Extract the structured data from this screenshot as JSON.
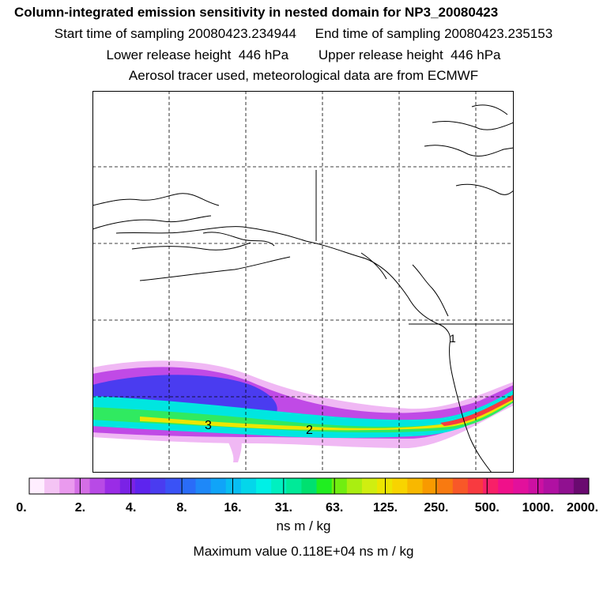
{
  "header": {
    "title": "Column-integrated emission sensitivity in nested domain for NP3_20080423",
    "sampling_line": "Start time of sampling 20080423.234944     End time of sampling 20080423.235153",
    "height_line": "Lower release height  446 hPa        Upper release height  446 hPa",
    "tracer_line": "Aerosol tracer used, meteorological data are from ECMWF"
  },
  "map": {
    "plume_labels": [
      {
        "text": "3"
      },
      {
        "text": "2"
      },
      {
        "text": "1"
      }
    ]
  },
  "legend": {
    "tick_labels": [
      "0.",
      "2.",
      "4.",
      "8.",
      "16.",
      "31.",
      "63.",
      "125.",
      "250.",
      "500.",
      "1000.",
      "2000."
    ],
    "colors": [
      "#ffeeff",
      "#f4c4f4",
      "#ea9aee",
      "#d46ee6",
      "#b84ae6",
      "#9a2ce6",
      "#7a22e6",
      "#5e24ee",
      "#4a3cf0",
      "#3a52f6",
      "#2a6cf8",
      "#1e88f8",
      "#10a4f8",
      "#08bef2",
      "#04d6ea",
      "#00f0e6",
      "#00f0c0",
      "#00ea98",
      "#00e070",
      "#20ee20",
      "#70ee10",
      "#aaee10",
      "#d0ee10",
      "#ece600",
      "#f8d400",
      "#f8b800",
      "#f89a00",
      "#f87a10",
      "#f85828",
      "#f83a40",
      "#f82068",
      "#f0108a",
      "#e2109c",
      "#cc10a2",
      "#b010a2",
      "#901090",
      "#6a0a70"
    ],
    "units": "ns m / kg",
    "max_value": "Maximum value  0.118E+04 ns m / kg"
  }
}
